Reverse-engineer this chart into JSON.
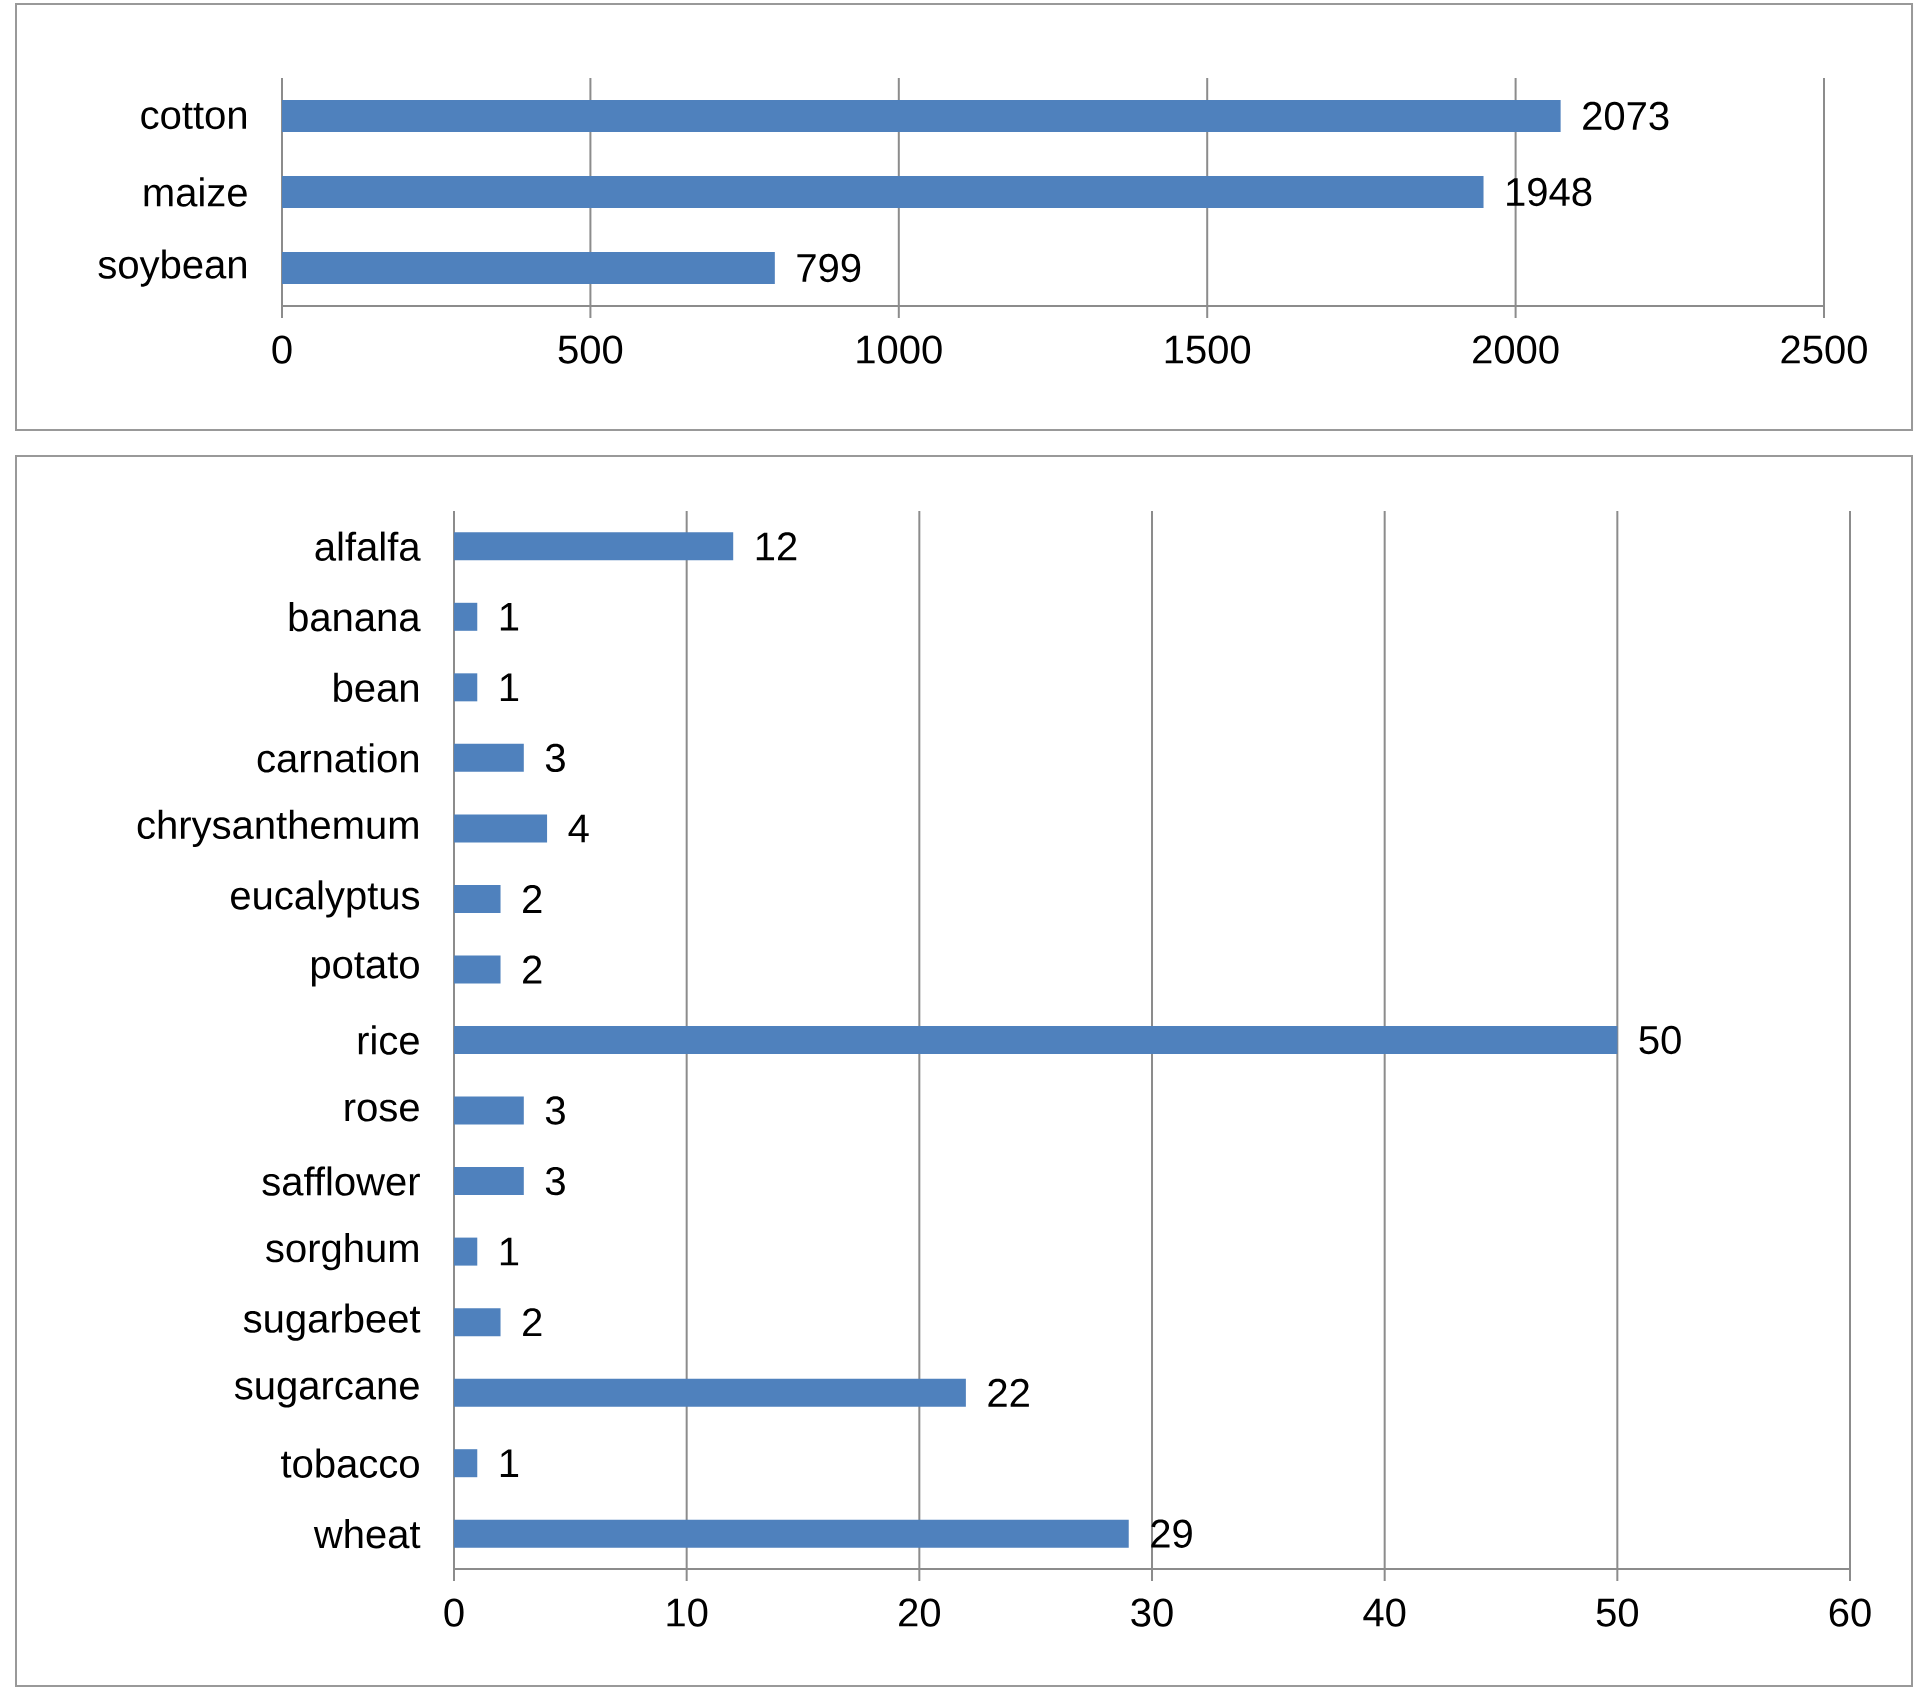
{
  "chart_data": [
    {
      "type": "bar",
      "orientation": "horizontal",
      "categories": [
        "cotton",
        "maize",
        "soybean"
      ],
      "values": [
        2073,
        1948,
        799
      ],
      "color": "#4f81bd",
      "xlim": [
        0,
        2500
      ],
      "xticks": [
        0,
        500,
        1000,
        1500,
        2000,
        2500
      ],
      "grid": "x",
      "data_labels": true
    },
    {
      "type": "bar",
      "orientation": "horizontal",
      "categories": [
        "alfalfa",
        "banana",
        "bean",
        "carnation",
        "chrysanthemum",
        "eucalyptus",
        "potato",
        "rice",
        "rose",
        "safflower",
        "sorghum",
        "sugarbeet",
        "sugarcane",
        "tobacco",
        "wheat"
      ],
      "values": [
        12,
        1,
        1,
        3,
        4,
        2,
        2,
        50,
        3,
        3,
        1,
        2,
        22,
        1,
        29
      ],
      "color": "#4f81bd",
      "xlim": [
        0,
        60
      ],
      "xticks": [
        0,
        10,
        20,
        30,
        40,
        50,
        60
      ],
      "grid": "x",
      "data_labels": true
    }
  ]
}
